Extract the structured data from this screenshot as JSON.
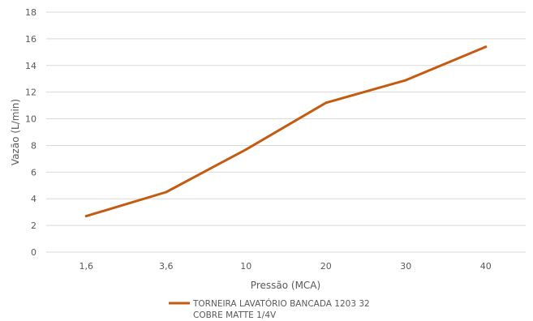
{
  "chart_data": {
    "type": "line",
    "categories": [
      "1,6",
      "3,6",
      "10",
      "20",
      "30",
      "40"
    ],
    "series": [
      {
        "name": "TORNEIRA LAVATÓRIO BANCADA 1203 32 COBRE MATTE 1/4V",
        "legend_lines": [
          "TORNEIRA LAVATÓRIO BANCADA 1203 32",
          "COBRE MATTE 1/4V"
        ],
        "values": [
          2.7,
          4.5,
          7.7,
          11.2,
          12.9,
          15.4
        ],
        "color": "#c55a11"
      }
    ],
    "xlabel": "Pressão (MCA)",
    "ylabel": "Vazão (L/min)",
    "ylim": [
      0,
      18
    ],
    "yticks": [
      "0",
      "2",
      "4",
      "6",
      "8",
      "10",
      "12",
      "14",
      "16",
      "18"
    ],
    "grid": true,
    "legend_position": "bottom"
  }
}
